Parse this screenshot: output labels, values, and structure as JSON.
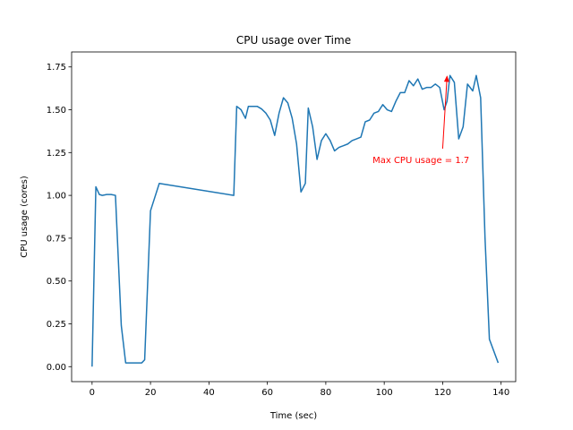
{
  "chart_data": {
    "type": "line",
    "title": "CPU usage over Time",
    "xlabel": "Time (sec)",
    "ylabel": "CPU usage (cores)",
    "xlim": [
      -7,
      145
    ],
    "ylim": [
      -0.0875,
      1.8375
    ],
    "xticks": [
      0,
      20,
      40,
      60,
      80,
      100,
      120,
      140
    ],
    "yticks": [
      0.0,
      0.25,
      0.5,
      0.75,
      1.0,
      1.25,
      1.5,
      1.75
    ],
    "ytick_labels": [
      "0.00",
      "0.25",
      "0.50",
      "0.75",
      "1.00",
      "1.25",
      "1.50",
      "1.75"
    ],
    "grid": false,
    "series": [
      {
        "color": "#1f77b4",
        "x": [
          0,
          1.3,
          2.5,
          3.5,
          5,
          6.5,
          8,
          10,
          11.5,
          13,
          15,
          17,
          18,
          20,
          23,
          48.5,
          49.5,
          51,
          52.5,
          53.5,
          55,
          56.5,
          58,
          59.5,
          61,
          62.5,
          64,
          65.5,
          67,
          68.5,
          70,
          71.5,
          73,
          74,
          75.5,
          77,
          78.5,
          80,
          81.5,
          83,
          84.5,
          86,
          87.5,
          89,
          90.5,
          92,
          93.5,
          95,
          96.5,
          98,
          99.5,
          101,
          102.5,
          104,
          105.5,
          107,
          108.5,
          110,
          111.5,
          113,
          114.5,
          116,
          117.5,
          119,
          120.5,
          121.5,
          122.5,
          124,
          125.5,
          127,
          128.5,
          130.3,
          131.5,
          133,
          134.5,
          136,
          139
        ],
        "y": [
          0.0,
          1.05,
          1.005,
          1.0,
          1.005,
          1.005,
          1.0,
          0.24,
          0.022,
          0.022,
          0.022,
          0.022,
          0.04,
          0.91,
          1.07,
          1.0,
          1.52,
          1.5,
          1.45,
          1.52,
          1.52,
          1.52,
          1.505,
          1.48,
          1.44,
          1.35,
          1.48,
          1.57,
          1.54,
          1.45,
          1.3,
          1.02,
          1.07,
          1.51,
          1.4,
          1.21,
          1.32,
          1.36,
          1.32,
          1.26,
          1.28,
          1.29,
          1.3,
          1.32,
          1.33,
          1.34,
          1.43,
          1.44,
          1.48,
          1.49,
          1.53,
          1.5,
          1.49,
          1.55,
          1.6,
          1.6,
          1.67,
          1.64,
          1.68,
          1.62,
          1.63,
          1.63,
          1.65,
          1.63,
          1.5,
          1.55,
          1.7,
          1.66,
          1.33,
          1.4,
          1.65,
          1.61,
          1.7,
          1.57,
          0.75,
          0.16,
          0.022
        ]
      }
    ],
    "annotation": {
      "text": "Max CPU usage = 1.7",
      "point": [
        121.5,
        1.7
      ],
      "text_at": [
        96,
        1.21
      ],
      "color": "#ff0000"
    }
  }
}
